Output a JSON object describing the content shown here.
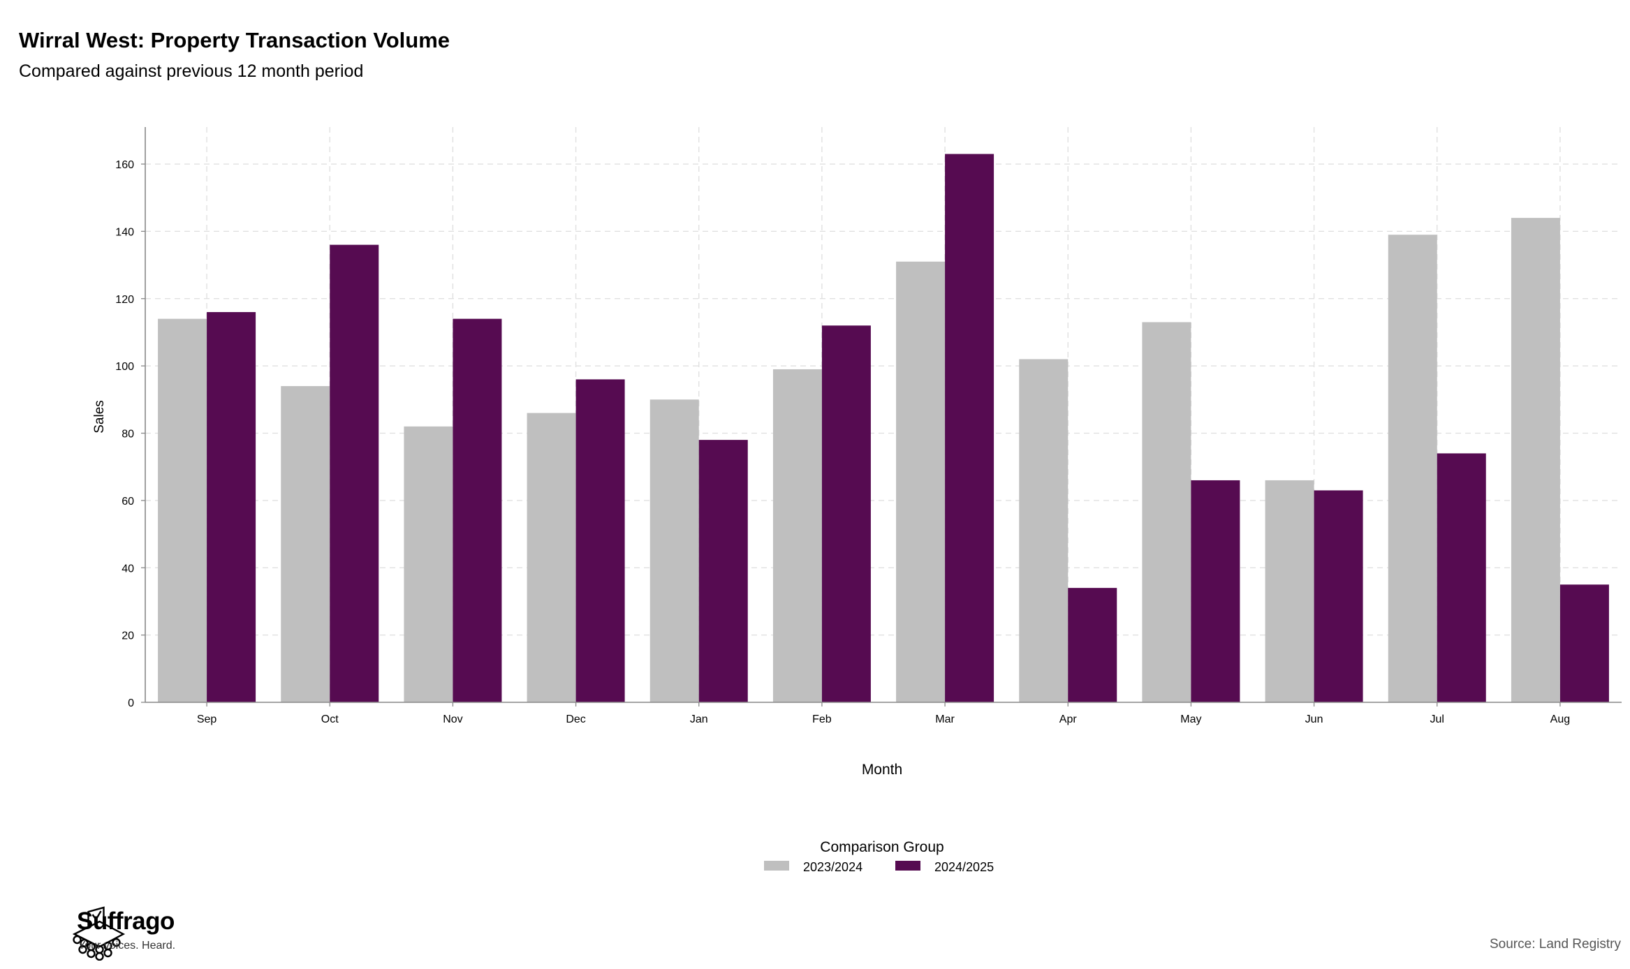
{
  "header": {
    "title": "Wirral West: Property Transaction Volume",
    "subtitle": "Compared against previous 12 month period"
  },
  "footer": {
    "brand_name": "Suffrago",
    "brand_tagline": "Your voices. Heard.",
    "source": "Source: Land Registry"
  },
  "chart_data": {
    "type": "bar",
    "title": "Wirral West: Property Transaction Volume",
    "subtitle": "Compared against previous 12 month period",
    "xlabel": "Month",
    "ylabel": "Sales",
    "categories": [
      "Sep",
      "Oct",
      "Nov",
      "Dec",
      "Jan",
      "Feb",
      "Mar",
      "Apr",
      "May",
      "Jun",
      "Jul",
      "Aug"
    ],
    "series": [
      {
        "name": "2023/2024",
        "color": "#bfbfbf",
        "values": [
          114,
          94,
          82,
          86,
          90,
          99,
          131,
          102,
          113,
          66,
          139,
          144
        ]
      },
      {
        "name": "2024/2025",
        "color": "#560b51",
        "values": [
          116,
          136,
          114,
          96,
          78,
          112,
          163,
          34,
          66,
          63,
          74,
          35
        ]
      }
    ],
    "ylim": [
      0,
      171
    ],
    "yticks": [
      0,
      20,
      40,
      60,
      80,
      100,
      120,
      140,
      160
    ],
    "grid": true,
    "legend": {
      "title": "Comparison Group",
      "position": "bottom"
    }
  }
}
